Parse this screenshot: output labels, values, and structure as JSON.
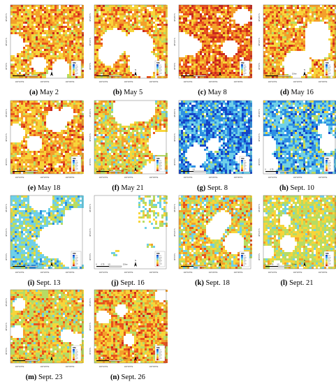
{
  "legend_title": "SM",
  "legend_ticks": [
    "0.3",
    "0.25",
    "0.2",
    "0.15",
    "0.1",
    "0.05",
    "0"
  ],
  "scale_bar": {
    "ticks": [
      "0",
      "0.75",
      "1.5"
    ],
    "unit": "15 km"
  },
  "north_label": "N",
  "lat_ticks": [
    "38°20'0\"N",
    "38°10'0\"N",
    "38°0'0\"N"
  ],
  "lon_ticks": [
    "146°10'0\"E",
    "146°20'0\"E",
    "146°30'0\"E"
  ],
  "colors": {
    "dry_dark": "#c8281e",
    "dry": "#e8531d",
    "mid_dry": "#f3a02a",
    "mid": "#f7d53a",
    "wet_low": "#b7dc63",
    "wet": "#6fd0e8",
    "very_wet": "#2d8fe3",
    "wettest": "#1546c8",
    "nodata": "#ffffff"
  },
  "panels": [
    {
      "letter": "(a)",
      "date": "May 2",
      "palette": "dry",
      "gaps": 0.3
    },
    {
      "letter": "(b)",
      "date": "May 5",
      "palette": "dry",
      "gaps": 0.3
    },
    {
      "letter": "(c)",
      "date": "May 8",
      "palette": "driest",
      "gaps": 0.25
    },
    {
      "letter": "(d)",
      "date": "May 16",
      "palette": "dry",
      "gaps": 0.3
    },
    {
      "letter": "(e)",
      "date": "May 18",
      "palette": "dry",
      "gaps": 0.3
    },
    {
      "letter": "(f)",
      "date": "May 21",
      "palette": "mixed",
      "gaps": 0.3
    },
    {
      "letter": "(g)",
      "date": "Sept. 8",
      "palette": "wet",
      "gaps": 0.3
    },
    {
      "letter": "(h)",
      "date": "Sept. 10",
      "palette": "wet2",
      "gaps": 0.25
    },
    {
      "letter": "(i)",
      "date": "Sept. 13",
      "palette": "cyan",
      "gaps": 0.4
    },
    {
      "letter": "(j)",
      "date": "Sept. 16",
      "palette": "sparse",
      "gaps": 0.9
    },
    {
      "letter": "(k)",
      "date": "Sept. 18",
      "palette": "mixed2",
      "gaps": 0.2
    },
    {
      "letter": "(l)",
      "date": "Sept. 21",
      "palette": "light",
      "gaps": 0.35
    },
    {
      "letter": "(m)",
      "date": "Sept. 23",
      "palette": "mixed3",
      "gaps": 0.05
    },
    {
      "letter": "(n)",
      "date": "Sept. 26",
      "palette": "dry2",
      "gaps": 0.05
    }
  ]
}
